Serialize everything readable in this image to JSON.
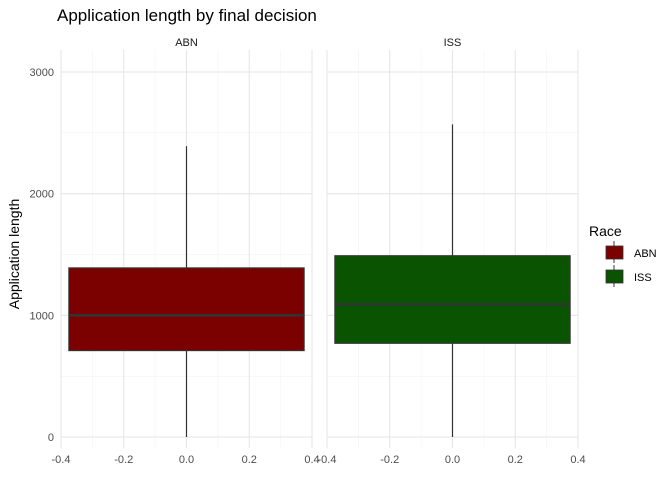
{
  "chart_data": {
    "type": "boxplot",
    "title": "Application length by final decision",
    "xlabel": "",
    "ylabel": "Application length",
    "facets": [
      "ABN",
      "ISS"
    ],
    "xlim": [
      -0.4,
      0.4
    ],
    "x_ticks": [
      -0.4,
      -0.2,
      0.0,
      0.2,
      0.4
    ],
    "x_tick_labels": [
      "-0.4",
      "-0.2",
      "0.0",
      "0.2",
      "0.4"
    ],
    "ylim": [
      0,
      3000
    ],
    "y_ticks": [
      0,
      1000,
      2000,
      3000
    ],
    "y_tick_labels": [
      "0",
      "1000",
      "2000",
      "3000"
    ],
    "grid": true,
    "legend": {
      "title": "Race",
      "position": "right",
      "entries": [
        {
          "label": "ABN",
          "color": "#7b0000"
        },
        {
          "label": "ISS",
          "color": "#0a5401"
        }
      ]
    },
    "series": [
      {
        "facet": "ABN",
        "box_x": [
          -0.375,
          0.375
        ],
        "min": 0,
        "q1": 710,
        "median": 1000,
        "q3": 1390,
        "max": 2390,
        "color": "#7b0000"
      },
      {
        "facet": "ISS",
        "box_x": [
          -0.375,
          0.375
        ],
        "min": 0,
        "q1": 770,
        "median": 1090,
        "q3": 1490,
        "max": 2570,
        "color": "#0a5401"
      }
    ]
  }
}
